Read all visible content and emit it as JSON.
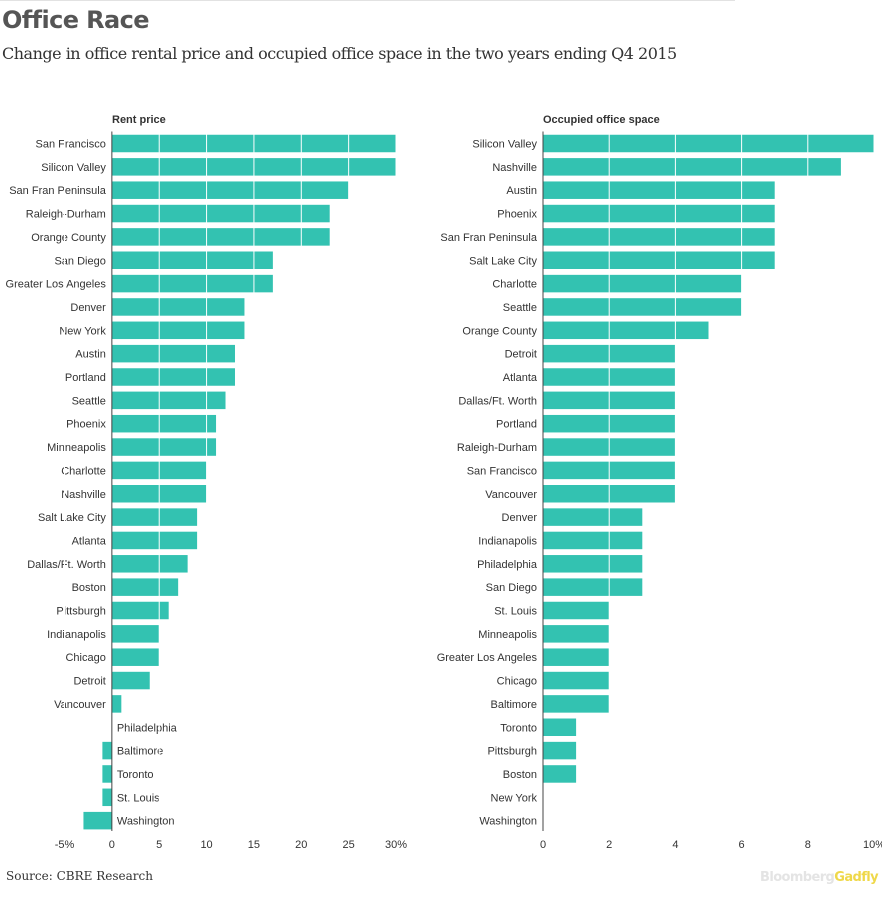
{
  "title": "Office Race",
  "subtitle": "Change in office rental price and occupied office space in the two years ending Q4 2015",
  "source": "Source: CBRE Research",
  "brand": {
    "part1": "Bloomberg",
    "part2": "Gadfly"
  },
  "colors": {
    "bar": "#33c2b1",
    "text": "#333333",
    "axis": "#444444",
    "grid": "#ffffff"
  },
  "chart_data": [
    {
      "type": "bar",
      "orientation": "horizontal",
      "title": "Rent price",
      "xlim": [
        -5,
        30
      ],
      "ticks": [
        -5,
        0,
        5,
        10,
        15,
        20,
        25,
        30
      ],
      "tick_labels": [
        "-5%",
        "0",
        "5",
        "10",
        "15",
        "20",
        "25",
        "30%"
      ],
      "categories": [
        "San Francisco",
        "Silicon Valley",
        "San Fran Peninsula",
        "Raleigh-Durham",
        "Orange County",
        "San Diego",
        "Greater Los Angeles",
        "Denver",
        "New York",
        "Austin",
        "Portland",
        "Seattle",
        "Phoenix",
        "Minneapolis",
        "Charlotte",
        "Nashville",
        "Salt Lake City",
        "Atlanta",
        "Dallas/Ft. Worth",
        "Boston",
        "Pittsburgh",
        "Indianapolis",
        "Chicago",
        "Detroit",
        "Vancouver",
        "Philadelphia",
        "Baltimore",
        "Toronto",
        "St. Louis",
        "Washington"
      ],
      "values": [
        30,
        30,
        25,
        23,
        23,
        17,
        17,
        14,
        14,
        13,
        13,
        12,
        11,
        11,
        10,
        10,
        9,
        9,
        8,
        7,
        6,
        5,
        5,
        4,
        1,
        0,
        -1,
        -1,
        -1,
        -3
      ]
    },
    {
      "type": "bar",
      "orientation": "horizontal",
      "title": "Occupied office space",
      "xlim": [
        0,
        10
      ],
      "ticks": [
        0,
        2,
        4,
        6,
        8,
        10
      ],
      "tick_labels": [
        "0",
        "2",
        "4",
        "6",
        "8",
        "10%"
      ],
      "categories": [
        "Silicon Valley",
        "Nashville",
        "Austin",
        "Phoenix",
        "San Fran Peninsula",
        "Salt Lake City",
        "Charlotte",
        "Seattle",
        "Orange County",
        "Detroit",
        "Atlanta",
        "Dallas/Ft. Worth",
        "Portland",
        "Raleigh-Durham",
        "San Francisco",
        "Vancouver",
        "Denver",
        "Indianapolis",
        "Philadelphia",
        "San Diego",
        "St. Louis",
        "Minneapolis",
        "Greater Los Angeles",
        "Chicago",
        "Baltimore",
        "Toronto",
        "Pittsburgh",
        "Boston",
        "New York",
        "Washington"
      ],
      "values": [
        10,
        9,
        7,
        7,
        7,
        7,
        6,
        6,
        5,
        4,
        4,
        4,
        4,
        4,
        4,
        4,
        3,
        3,
        3,
        3,
        2,
        2,
        2,
        2,
        2,
        1,
        1,
        1,
        0,
        0
      ]
    }
  ]
}
